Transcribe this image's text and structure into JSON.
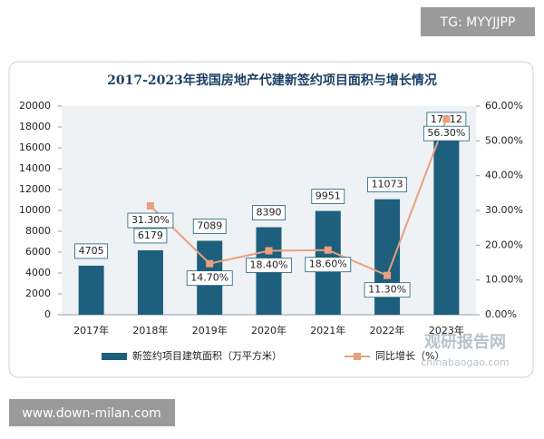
{
  "watermark_top": "TG: MYYJJPP",
  "watermark_bottom": "www.down-milan.com",
  "logo": {
    "name": "观研报告网",
    "url": "chinabaogao.com"
  },
  "chart_data": {
    "type": "bar-line",
    "title": "2017-2023年我国房地产代建新签约项目面积与增长情况",
    "categories": [
      "2017年",
      "2018年",
      "2019年",
      "2020年",
      "2021年",
      "2022年",
      "2023年"
    ],
    "series": [
      {
        "name": "新签约项目建筑面积（万平方米）",
        "type": "bar",
        "color": "#1d5f7c",
        "values": [
          4705,
          6179,
          7089,
          8390,
          9951,
          11073,
          17312
        ]
      },
      {
        "name": "同比增长（%）",
        "type": "line",
        "axis": "y2",
        "color": "#e8a07e",
        "values": [
          null,
          31.3,
          14.7,
          18.4,
          18.6,
          11.3,
          56.3
        ],
        "value_labels": [
          null,
          "31.30%",
          "14.70%",
          "18.40%",
          "18.60%",
          "11.30%",
          "56.30%"
        ]
      }
    ],
    "ylim": [
      0,
      20000
    ],
    "yticks": [
      0,
      2000,
      4000,
      6000,
      8000,
      10000,
      12000,
      14000,
      16000,
      18000,
      20000
    ],
    "y2lim": [
      0,
      60
    ],
    "y2ticks": [
      {
        "value": 0,
        "label": "0.00%"
      },
      {
        "value": 10,
        "label": "10.00%"
      },
      {
        "value": 20,
        "label": "20.00%"
      },
      {
        "value": 30,
        "label": "30.00%"
      },
      {
        "value": 40,
        "label": "40.00%"
      },
      {
        "value": 50,
        "label": "50.00%"
      },
      {
        "value": 60,
        "label": "60.00%"
      }
    ]
  }
}
